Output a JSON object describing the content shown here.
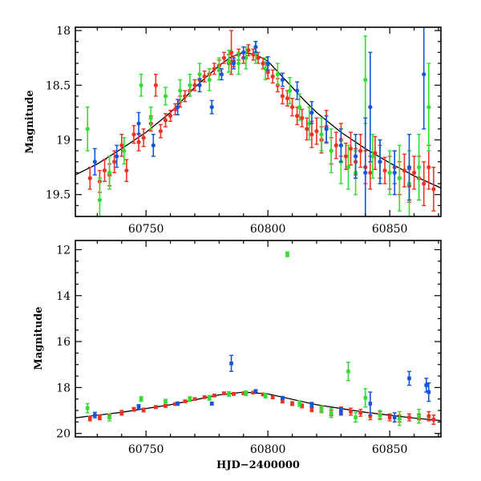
{
  "colors": {
    "red": "#ee3322",
    "green": "#33dd33",
    "blue": "#1155dd",
    "fit": "#000000"
  },
  "chart_data": [
    {
      "type": "scatter",
      "panel": "top",
      "xlabel": "",
      "ylabel": "Magnitude",
      "xlim": [
        60721,
        60871
      ],
      "ylim": [
        19.7,
        17.97
      ],
      "y_inverted": true,
      "xticks": [
        60750,
        60800,
        60850
      ],
      "xtick_labels": [
        "60750",
        "60800",
        "60850"
      ],
      "yticks": [
        18,
        18.5,
        19,
        19.5
      ],
      "ytick_labels": [
        "18",
        "18.5",
        "19",
        "19.5"
      ],
      "fit_curve": {
        "x": [
          60721,
          60730,
          60740,
          60750,
          60760,
          60770,
          60780,
          60785,
          60790,
          60795,
          60800,
          60805,
          60810,
          60815,
          60820,
          60830,
          60840,
          60850,
          60860,
          60871
        ],
        "y": [
          19.32,
          19.22,
          19.08,
          18.93,
          18.75,
          18.52,
          18.32,
          18.24,
          18.2,
          18.22,
          18.28,
          18.4,
          18.52,
          18.64,
          18.75,
          18.93,
          19.08,
          19.21,
          19.33,
          19.44
        ]
      },
      "series": [
        {
          "color": "red",
          "x": [
            60727,
            60731,
            60733,
            60735,
            60737,
            60740,
            60742,
            60745,
            60747,
            60749,
            60752,
            60754,
            60756,
            60758,
            60760,
            60762,
            60764,
            60766,
            60768,
            60770,
            60772,
            60774,
            60776,
            60778,
            60780,
            60782,
            60784,
            60785,
            60786,
            60788,
            60790,
            60792,
            60794,
            60796,
            60798,
            60800,
            60802,
            60804,
            60806,
            60808,
            60810,
            60812,
            60814,
            60816,
            60818,
            60820,
            60822,
            60824,
            60826,
            60828,
            60830,
            60832,
            60834,
            60836,
            60838,
            60840,
            60842,
            60844,
            60846,
            60848,
            60850,
            60852,
            60854,
            60856,
            60858,
            60860,
            60862,
            60864,
            60866,
            60868
          ],
          "y": [
            19.35,
            19.38,
            19.28,
            19.32,
            19.2,
            19.05,
            19.28,
            18.95,
            19.02,
            18.98,
            18.85,
            18.5,
            18.92,
            18.82,
            18.78,
            18.72,
            18.65,
            18.6,
            18.55,
            18.5,
            18.45,
            18.42,
            18.4,
            18.35,
            18.32,
            18.25,
            18.3,
            18.2,
            18.28,
            18.22,
            18.25,
            18.18,
            18.22,
            18.25,
            18.3,
            18.38,
            18.42,
            18.5,
            18.6,
            18.62,
            18.7,
            18.78,
            18.8,
            18.9,
            18.95,
            18.92,
            19.0,
            18.88,
            19.1,
            19.05,
            19.0,
            19.15,
            19.08,
            19.2,
            19.1,
            19.25,
            19.3,
            19.12,
            19.2,
            19.28,
            19.3,
            19.25,
            19.35,
            19.28,
            19.42,
            19.3,
            19.35,
            19.4,
            19.25,
            19.45
          ],
          "err": [
            0.1,
            0.1,
            0.1,
            0.1,
            0.1,
            0.1,
            0.1,
            0.08,
            0.08,
            0.08,
            0.07,
            0.1,
            0.06,
            0.06,
            0.05,
            0.05,
            0.05,
            0.05,
            0.05,
            0.05,
            0.05,
            0.05,
            0.05,
            0.05,
            0.05,
            0.05,
            0.08,
            0.2,
            0.05,
            0.05,
            0.05,
            0.05,
            0.05,
            0.05,
            0.05,
            0.06,
            0.06,
            0.06,
            0.07,
            0.07,
            0.08,
            0.08,
            0.08,
            0.1,
            0.12,
            0.12,
            0.12,
            0.15,
            0.12,
            0.12,
            0.15,
            0.12,
            0.15,
            0.12,
            0.15,
            0.15,
            0.15,
            0.15,
            0.15,
            0.12,
            0.15,
            0.15,
            0.15,
            0.15,
            0.15,
            0.15,
            0.2,
            0.2,
            0.2,
            0.2
          ]
        },
        {
          "color": "green",
          "x": [
            60726,
            60731,
            60735,
            60741,
            60748,
            60752,
            60758,
            60764,
            60768,
            60772,
            60776,
            60780,
            60784,
            60788,
            60791,
            60795,
            60799,
            60804,
            60809,
            60813,
            60817,
            60822,
            60826,
            60830,
            60833,
            60836,
            60840,
            60843,
            60846,
            60850,
            60854,
            60858,
            60862,
            60866
          ],
          "y": [
            18.9,
            19.55,
            19.3,
            19.1,
            18.5,
            18.8,
            18.6,
            18.55,
            18.5,
            18.4,
            18.45,
            18.35,
            18.28,
            18.3,
            18.25,
            18.2,
            18.35,
            18.4,
            18.55,
            18.7,
            18.85,
            18.95,
            19.1,
            19.2,
            19.25,
            19.3,
            18.45,
            19.15,
            19.2,
            19.3,
            19.35,
            19.4,
            19.25,
            18.7
          ],
          "err": [
            0.2,
            0.2,
            0.15,
            0.12,
            0.1,
            0.1,
            0.08,
            0.1,
            0.1,
            0.1,
            0.1,
            0.1,
            0.1,
            0.1,
            0.1,
            0.1,
            0.1,
            0.1,
            0.12,
            0.12,
            0.15,
            0.15,
            0.2,
            0.2,
            0.2,
            0.2,
            0.4,
            0.2,
            0.2,
            0.2,
            0.3,
            0.3,
            0.3,
            0.4
          ]
        },
        {
          "color": "blue",
          "x": [
            60729,
            60738,
            60747,
            60753,
            60763,
            60772,
            60777,
            60781,
            60786,
            60790,
            60795,
            60800,
            60806,
            60812,
            60818,
            60824,
            60830,
            60836,
            60840,
            60842,
            60846,
            60852,
            60858,
            60864
          ],
          "y": [
            19.2,
            19.15,
            18.85,
            19.05,
            18.7,
            18.5,
            18.7,
            18.4,
            18.3,
            18.2,
            18.15,
            18.3,
            18.45,
            18.55,
            18.75,
            18.9,
            19.05,
            19.15,
            19.3,
            18.7,
            19.2,
            19.3,
            19.25,
            18.4
          ],
          "err": [
            0.12,
            0.1,
            0.1,
            0.1,
            0.07,
            0.06,
            0.06,
            0.05,
            0.05,
            0.05,
            0.05,
            0.06,
            0.06,
            0.08,
            0.1,
            0.12,
            0.15,
            0.2,
            0.5,
            0.5,
            0.2,
            0.2,
            0.3,
            0.5
          ]
        }
      ]
    },
    {
      "type": "scatter",
      "panel": "bottom",
      "xlabel": "HJD−2400000",
      "ylabel": "Magnitude",
      "xlim": [
        60721,
        60871
      ],
      "ylim": [
        20.15,
        11.6
      ],
      "y_inverted": true,
      "xticks": [
        60750,
        60800,
        60850
      ],
      "xtick_labels": [
        "60750",
        "60800",
        "60850"
      ],
      "yticks": [
        12,
        14,
        16,
        18,
        20
      ],
      "ytick_labels": [
        "12",
        "14",
        "16",
        "18",
        "20"
      ],
      "fit_curve": {
        "x": [
          60721,
          60740,
          60760,
          60780,
          60790,
          60800,
          60820,
          60840,
          60860,
          60871
        ],
        "y": [
          19.32,
          19.08,
          18.75,
          18.32,
          18.2,
          18.28,
          18.75,
          19.08,
          19.33,
          19.44
        ]
      },
      "series": [
        {
          "color": "red",
          "x": [
            60727,
            60731,
            60735,
            60740,
            60745,
            60749,
            60754,
            60758,
            60762,
            60766,
            60770,
            60774,
            60778,
            60782,
            60786,
            60790,
            60794,
            60798,
            60802,
            60806,
            60810,
            60814,
            60818,
            60822,
            60826,
            60830,
            60834,
            60838,
            60842,
            60846,
            60850,
            60854,
            60858,
            60862,
            60866,
            60868
          ],
          "y": [
            19.35,
            19.3,
            19.25,
            19.1,
            18.95,
            18.98,
            18.85,
            18.8,
            18.72,
            18.6,
            18.5,
            18.42,
            18.35,
            18.25,
            18.28,
            18.25,
            18.22,
            18.3,
            18.42,
            18.6,
            18.7,
            18.8,
            18.95,
            18.95,
            19.1,
            19.0,
            19.05,
            19.1,
            19.25,
            19.2,
            19.3,
            19.35,
            19.3,
            19.35,
            19.25,
            19.4
          ],
          "err": [
            0.1,
            0.1,
            0.1,
            0.1,
            0.08,
            0.08,
            0.06,
            0.06,
            0.05,
            0.05,
            0.05,
            0.05,
            0.05,
            0.05,
            0.05,
            0.05,
            0.05,
            0.05,
            0.06,
            0.07,
            0.08,
            0.08,
            0.1,
            0.12,
            0.12,
            0.15,
            0.15,
            0.15,
            0.15,
            0.15,
            0.15,
            0.15,
            0.15,
            0.2,
            0.2,
            0.2
          ]
        },
        {
          "color": "green",
          "x": [
            60726,
            60735,
            60748,
            60758,
            60768,
            60776,
            60784,
            60791,
            60799,
            60808,
            60813,
            60822,
            60826,
            60833,
            60836,
            60840,
            60846,
            60854,
            60862
          ],
          "y": [
            18.9,
            19.3,
            18.5,
            18.6,
            18.5,
            18.45,
            18.28,
            18.25,
            18.35,
            12.2,
            18.7,
            18.95,
            19.1,
            17.3,
            19.3,
            18.45,
            19.2,
            19.35,
            19.25
          ],
          "err": [
            0.2,
            0.15,
            0.1,
            0.08,
            0.1,
            0.1,
            0.1,
            0.1,
            0.1,
            0.1,
            0.12,
            0.15,
            0.2,
            0.4,
            0.2,
            0.4,
            0.2,
            0.3,
            0.3
          ]
        },
        {
          "color": "blue",
          "x": [
            60729,
            60747,
            60763,
            60777,
            60785,
            60795,
            60806,
            60818,
            60830,
            60842,
            60852,
            60858,
            60865,
            60866
          ],
          "y": [
            19.2,
            18.85,
            18.7,
            18.7,
            16.95,
            18.15,
            18.45,
            18.75,
            19.05,
            18.7,
            19.3,
            17.6,
            17.9,
            18.2
          ],
          "err": [
            0.12,
            0.1,
            0.07,
            0.06,
            0.35,
            0.05,
            0.06,
            0.1,
            0.15,
            0.5,
            0.2,
            0.3,
            0.3,
            0.4
          ]
        }
      ]
    }
  ]
}
